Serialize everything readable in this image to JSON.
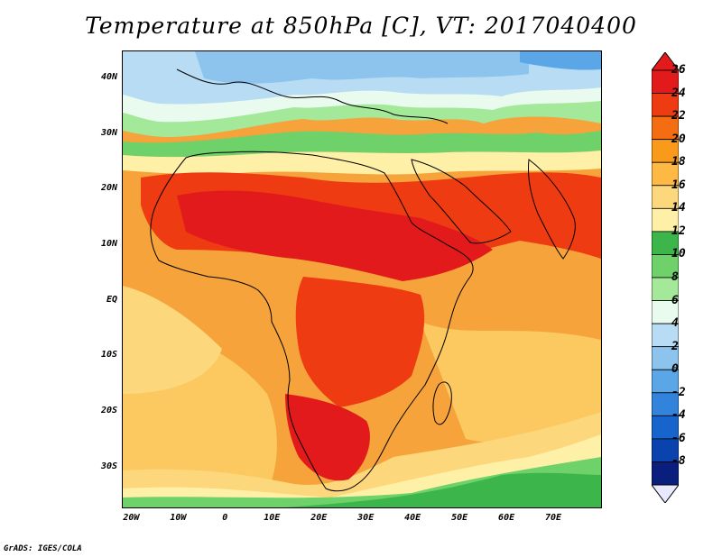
{
  "title": "Temperature at 850hPa [C], VT: 2017040400",
  "credit": "GrADS: IGES/COLA",
  "map": {
    "variable": "Temperature at 850hPa",
    "units": "C",
    "valid_time": "2017040400",
    "lon_range": [
      -22,
      80
    ],
    "lat_range": [
      -37,
      45
    ],
    "lat_ticks": [
      {
        "value": 40,
        "label": "40N"
      },
      {
        "value": 30,
        "label": "30N"
      },
      {
        "value": 20,
        "label": "20N"
      },
      {
        "value": 10,
        "label": "10N"
      },
      {
        "value": 0,
        "label": "EQ"
      },
      {
        "value": -10,
        "label": "10S"
      },
      {
        "value": -20,
        "label": "20S"
      },
      {
        "value": -30,
        "label": "30S"
      }
    ],
    "lon_ticks": [
      {
        "value": -20,
        "label": "20W"
      },
      {
        "value": -10,
        "label": "10W"
      },
      {
        "value": 0,
        "label": "0"
      },
      {
        "value": 10,
        "label": "10E"
      },
      {
        "value": 20,
        "label": "20E"
      },
      {
        "value": 30,
        "label": "30E"
      },
      {
        "value": 40,
        "label": "40E"
      },
      {
        "value": 50,
        "label": "50E"
      },
      {
        "value": 60,
        "label": "60E"
      },
      {
        "value": 70,
        "label": "70E"
      }
    ]
  },
  "colorbar": {
    "labels": [
      "26",
      "24",
      "22",
      "20",
      "18",
      "16",
      "14",
      "12",
      "10",
      "8",
      "6",
      "4",
      "2",
      "0",
      "-2",
      "-4",
      "-6",
      "-8"
    ],
    "colors": [
      "#e31a1c",
      "#ef3b12",
      "#f46d13",
      "#f99a1b",
      "#fdb944",
      "#fdd77c",
      "#fff0a8",
      "#3cb64a",
      "#6fd16a",
      "#a4e89a",
      "#e8fbee",
      "#b7dcf3",
      "#8cc4ee",
      "#5aa6e6",
      "#3283dc",
      "#1764cc",
      "#0a43ad",
      "#0a1f7d"
    ]
  }
}
